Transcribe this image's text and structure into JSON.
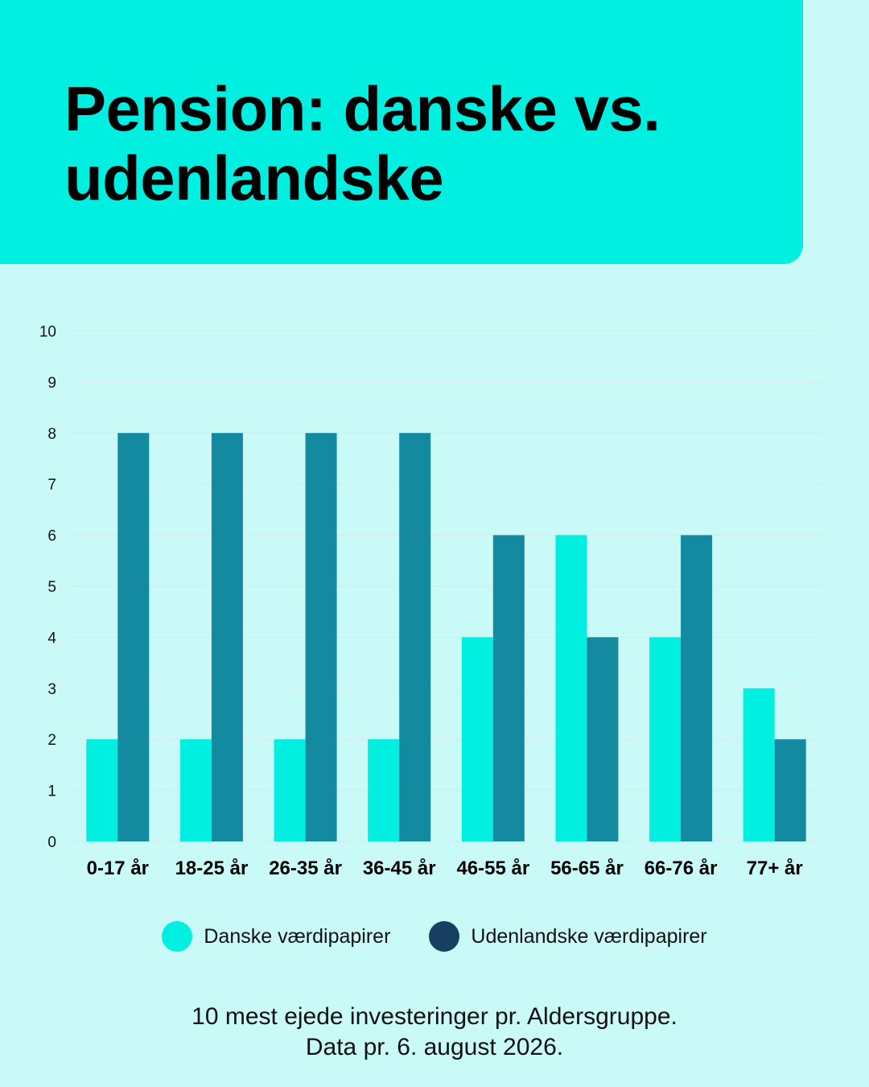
{
  "header": {
    "title": "Pension: danske vs. udenlandske"
  },
  "colors": {
    "page_bg": "#cafaf8",
    "header_bg": "#00efe1",
    "danske": "#00efe1",
    "udenlandske_bar": "#148aa0",
    "udenlandske_legend": "#173f5f",
    "grid": "#d9e6ee"
  },
  "chart_data": {
    "type": "bar",
    "title": "",
    "xlabel": "",
    "ylabel": "",
    "ylim": [
      0,
      10
    ],
    "yticks": [
      0,
      1,
      2,
      3,
      4,
      5,
      6,
      7,
      8,
      9,
      10
    ],
    "grid": true,
    "legend_position": "bottom",
    "categories": [
      "0-17 år",
      "18-25 år",
      "26-35 år",
      "36-45 år",
      "46-55 år",
      "56-65 år",
      "66-76 år",
      "77+ år"
    ],
    "series": [
      {
        "name": "Danske værdipapirer",
        "values": [
          2,
          2,
          2,
          2,
          4,
          6,
          4,
          3
        ]
      },
      {
        "name": "Udenlandske værdipapirer",
        "values": [
          8,
          8,
          8,
          8,
          6,
          4,
          6,
          2
        ]
      }
    ]
  },
  "legend": {
    "danske_label": "Danske værdipapirer",
    "udenlandske_label": "Udenlandske værdipapirer"
  },
  "footnote": {
    "line1": "10 mest ejede investeringer pr. Aldersgruppe.",
    "line2": "Data pr. 6. august 2026."
  }
}
